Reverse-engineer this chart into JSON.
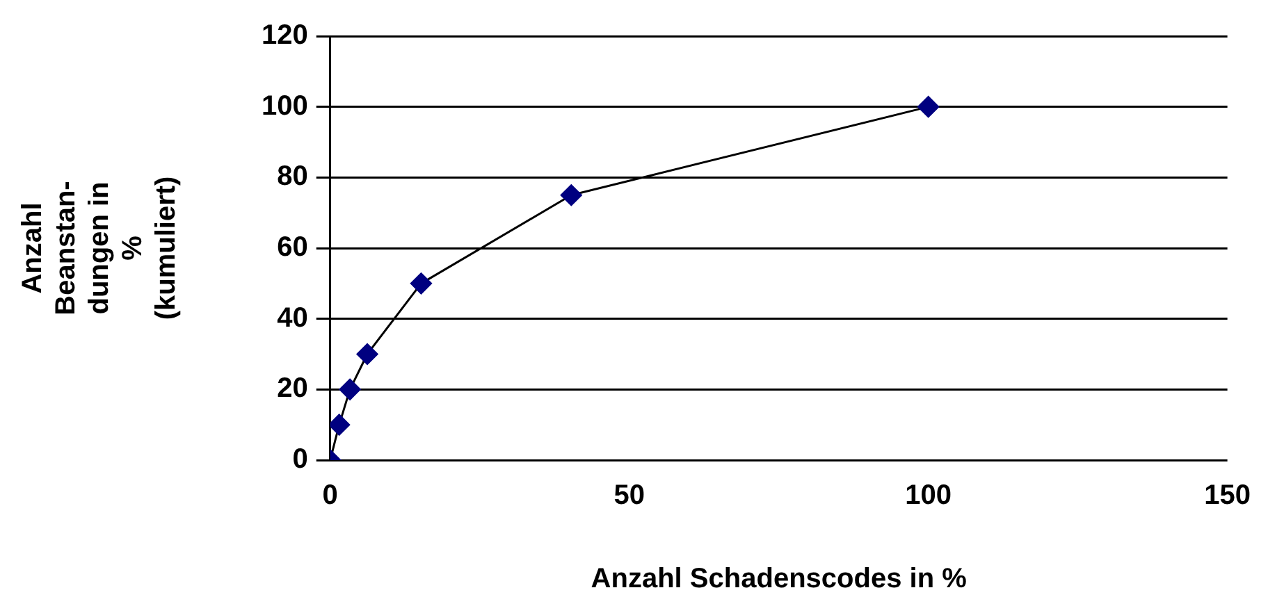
{
  "chart_data": {
    "type": "line",
    "xlabel": "Anzahl Schadenscodes in %",
    "ylabel": "Anzahl\nBeanstan-\ndungen in\n%\n(kumuliert)",
    "x": [
      0,
      1.5,
      3.3,
      6.2,
      15.2,
      40.3,
      100
    ],
    "series": [
      {
        "color": "#000080",
        "values": [
          0,
          10,
          20,
          30,
          50,
          75,
          100
        ]
      }
    ],
    "xlim": [
      0,
      150
    ],
    "xticks": [
      0,
      50,
      100,
      150
    ],
    "ylim": [
      0,
      120
    ],
    "yticks": [
      0,
      20,
      40,
      60,
      80,
      100,
      120
    ],
    "grid": "y",
    "legend": false,
    "marker": "diamond",
    "line_style": "solid"
  }
}
